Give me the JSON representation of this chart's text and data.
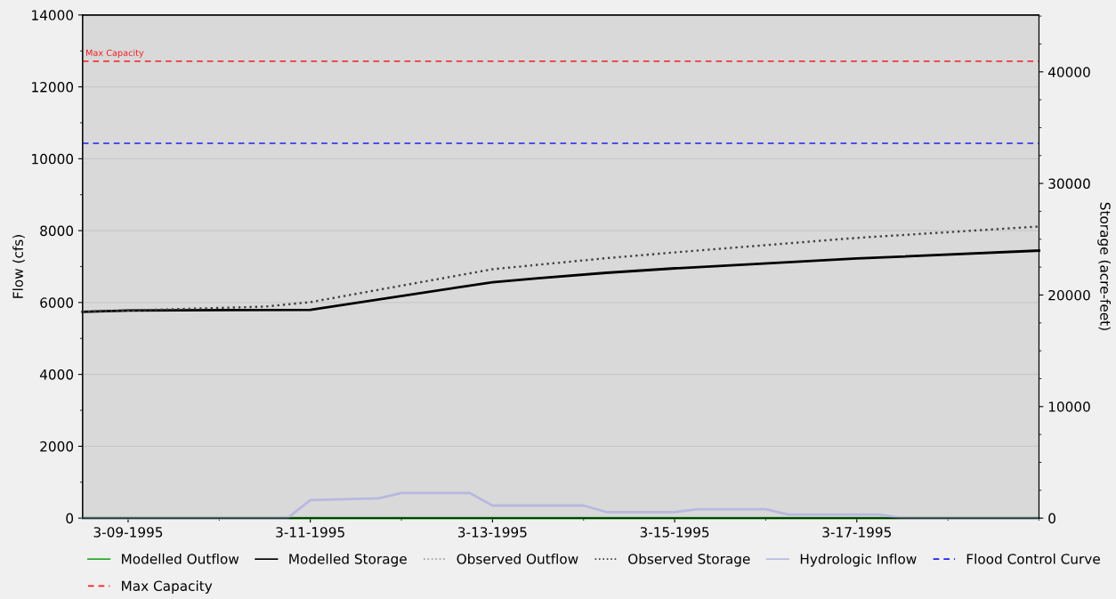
{
  "chart_data": {
    "type": "line",
    "ylabel": "Flow (cfs)",
    "y2label": "Storage (acre-feet)",
    "xlim": [
      "1995-03-08T12:00",
      "1995-03-19"
    ],
    "xticks": [
      {
        "value": "1995-03-09",
        "label": "3-09-1995"
      },
      {
        "value": "1995-03-11",
        "label": "3-11-1995"
      },
      {
        "value": "1995-03-13",
        "label": "3-13-1995"
      },
      {
        "value": "1995-03-15",
        "label": "3-15-1995"
      },
      {
        "value": "1995-03-17",
        "label": "3-17-1995"
      }
    ],
    "ylim": [
      0,
      14000
    ],
    "yticks": [
      0,
      2000,
      4000,
      6000,
      8000,
      10000,
      12000,
      14000
    ],
    "y2lim": [
      0,
      45100
    ],
    "y2ticks": [
      0,
      10000,
      20000,
      30000,
      40000
    ],
    "grid": "y",
    "legend": "bottom",
    "marker": "none",
    "series": [
      {
        "name": "Modelled Outflow",
        "color": "#22aa22",
        "line_style": "solid",
        "x": [
          "1995-03-08T12:00",
          "1995-03-19"
        ],
        "values": [
          0,
          0
        ]
      },
      {
        "name": "Modelled Storage",
        "color": "#000000",
        "line_style": "solid",
        "axis": "y2",
        "x": [
          "1995-03-08T12:00",
          "1995-03-09",
          "1995-03-11",
          "1995-03-13",
          "1995-03-13T12:00",
          "1995-03-14T06:00",
          "1995-03-15",
          "1995-03-17",
          "1995-03-19"
        ],
        "values": [
          18490,
          18610,
          18670,
          21150,
          21500,
          21990,
          22390,
          23270,
          23980
        ]
      },
      {
        "name": "Observed Outflow",
        "color": "#a0a0a0",
        "line_style": "dotted"
      },
      {
        "name": "Observed Storage",
        "color": "#404040",
        "line_style": "dotted",
        "axis": "y2",
        "x": [
          "1995-03-08T12:00",
          "1995-03-09",
          "1995-03-10T12:00",
          "1995-03-11",
          "1995-03-13",
          "1995-03-13T12:00",
          "1995-03-14T06:00",
          "1995-03-15",
          "1995-03-17",
          "1995-03-19"
        ],
        "values": [
          18490,
          18610,
          18960,
          19360,
          22310,
          22710,
          23300,
          23820,
          25120,
          26140
        ]
      },
      {
        "name": "Hydrologic Inflow",
        "color": "#b8b8e0",
        "line_style": "solid",
        "x": [
          "1995-03-08T12:00",
          "1995-03-10T18:00",
          "1995-03-11",
          "1995-03-11T18:00",
          "1995-03-12",
          "1995-03-12T18:00",
          "1995-03-13",
          "1995-03-14",
          "1995-03-14T06:00",
          "1995-03-15",
          "1995-03-15T06:00",
          "1995-03-16",
          "1995-03-16T06:00",
          "1995-03-17T06:00",
          "1995-03-17T12:00",
          "1995-03-19"
        ],
        "values": [
          0,
          0,
          500,
          550,
          700,
          700,
          350,
          350,
          170,
          170,
          250,
          250,
          100,
          100,
          0,
          0
        ]
      }
    ],
    "ref_lines": [
      {
        "axis": "y2",
        "value": 33600,
        "label": "Flood Control Curve",
        "color": "#2020ee",
        "line_style": "dashed"
      },
      {
        "axis": "y2",
        "value": 40960,
        "label": "Max Capacity",
        "color": "#ee2020",
        "line_style": "dashed"
      }
    ],
    "annotations": [
      "Max Capacity"
    ]
  }
}
